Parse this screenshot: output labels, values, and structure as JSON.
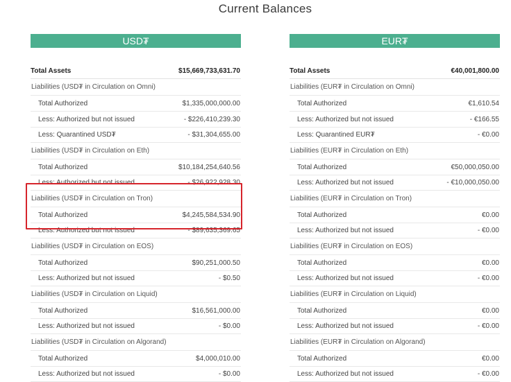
{
  "title": "Current Balances",
  "usdt": {
    "header": "USD₮",
    "total": {
      "label": "Total Assets",
      "value": "$15,669,733,631.70"
    },
    "groups": [
      {
        "title": "Liabilities (USD₮ in Circulation on Omni)",
        "rows": [
          {
            "label": "Total Authorized",
            "value": "$1,335,000,000.00"
          },
          {
            "label": "Less: Authorized but not issued",
            "value": "- $226,410,239.30"
          },
          {
            "label": "Less: Quarantined USD₮",
            "value": "- $31,304,655.00"
          }
        ]
      },
      {
        "title": "Liabilities (USD₮ in Circulation on Eth)",
        "rows": [
          {
            "label": "Total Authorized",
            "value": "$10,184,254,640.56"
          },
          {
            "label": "Less: Authorized but not issued",
            "value": "- $26,922,928.30"
          }
        ]
      },
      {
        "title": "Liabilities (USD₮ in Circulation on Tron)",
        "rows": [
          {
            "label": "Total Authorized",
            "value": "$4,245,584,534.90"
          },
          {
            "label": "Less: Authorized but not issued",
            "value": "- $89,635,369.65"
          }
        ]
      },
      {
        "title": "Liabilities (USD₮ in Circulation on EOS)",
        "rows": [
          {
            "label": "Total Authorized",
            "value": "$90,251,000.50"
          },
          {
            "label": "Less: Authorized but not issued",
            "value": "- $0.50"
          }
        ]
      },
      {
        "title": "Liabilities (USD₮ in Circulation on Liquid)",
        "rows": [
          {
            "label": "Total Authorized",
            "value": "$16,561,000.00"
          },
          {
            "label": "Less: Authorized but not issued",
            "value": "- $0.00"
          }
        ]
      },
      {
        "title": "Liabilities (USD₮ in Circulation on Algorand)",
        "rows": [
          {
            "label": "Total Authorized",
            "value": "$4,000,010.00"
          },
          {
            "label": "Less: Authorized but not issued",
            "value": "- $0.00"
          }
        ]
      }
    ]
  },
  "eurt": {
    "header": "EUR₮",
    "total": {
      "label": "Total Assets",
      "value": "€40,001,800.00"
    },
    "groups": [
      {
        "title": "Liabilities (EUR₮ in Circulation on Omni)",
        "rows": [
          {
            "label": "Total Authorized",
            "value": "€1,610.54"
          },
          {
            "label": "Less: Authorized but not issued",
            "value": "- €166.55"
          },
          {
            "label": "Less: Quarantined EUR₮",
            "value": "- €0.00"
          }
        ]
      },
      {
        "title": "Liabilities (EUR₮ in Circulation on Eth)",
        "rows": [
          {
            "label": "Total Authorized",
            "value": "€50,000,050.00"
          },
          {
            "label": "Less: Authorized but not issued",
            "value": "- €10,000,050.00"
          }
        ]
      },
      {
        "title": "Liabilities (EUR₮ in Circulation on Tron)",
        "rows": [
          {
            "label": "Total Authorized",
            "value": "€0.00"
          },
          {
            "label": "Less: Authorized but not issued",
            "value": "- €0.00"
          }
        ]
      },
      {
        "title": "Liabilities (EUR₮ in Circulation on EOS)",
        "rows": [
          {
            "label": "Total Authorized",
            "value": "€0.00"
          },
          {
            "label": "Less: Authorized but not issued",
            "value": "- €0.00"
          }
        ]
      },
      {
        "title": "Liabilities (EUR₮ in Circulation on Liquid)",
        "rows": [
          {
            "label": "Total Authorized",
            "value": "€0.00"
          },
          {
            "label": "Less: Authorized but not issued",
            "value": "- €0.00"
          }
        ]
      },
      {
        "title": "Liabilities (EUR₮ in Circulation on Algorand)",
        "rows": [
          {
            "label": "Total Authorized",
            "value": "€0.00"
          },
          {
            "label": "Less: Authorized but not issued",
            "value": "- €0.00"
          }
        ]
      }
    ]
  },
  "highlight_color": "#d6242b",
  "header_color": "#4caf8f"
}
